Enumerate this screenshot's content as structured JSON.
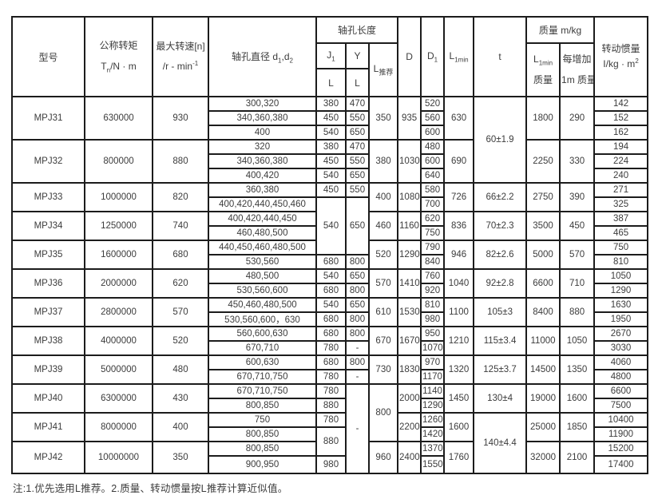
{
  "page": {
    "footnote": "注:1.优先选用L推荐。2.质量、转动惯量按L推荐计算近似值。"
  },
  "table": {
    "header": {
      "model": "型号",
      "torque_l1": "公称转矩",
      "torque_base": "T",
      "torque_sub": "n",
      "torque_rest": "/N · m",
      "speed_l1": "最大转速[n]",
      "speed_base": "/r - min",
      "speed_sup": "-1",
      "bore_base": "轴孔直径 d",
      "bore_sub1": "1",
      "bore_mid": ",d",
      "bore_sub2": "2",
      "hole_length": "轴孔长度",
      "j1_base": "J",
      "j1_sub": "1",
      "y": "Y",
      "l": "L",
      "lrec_base": "L",
      "lrec_sub": "推荐",
      "d": "D",
      "d1_base": "D",
      "d1_sub": "1",
      "l1min_base": "L",
      "l1min_sub": "1min",
      "t": "t",
      "mass": "质量  m/kg",
      "mass_l1min_base": "L",
      "mass_l1min_sub": "1min",
      "mass_l1min_l2": "质量",
      "mass_per_l1": "每增加",
      "mass_per_l2": "1m 质量",
      "inertia_l1": "转动惯量",
      "inertia_base": "I/kg · m",
      "inertia_sup": "2"
    },
    "col_names": [
      "model",
      "torque",
      "speed",
      "bore-diameter",
      "j1-l",
      "y-l",
      "l-recommended",
      "d",
      "d1",
      "l1min",
      "t",
      "l1min-mass",
      "per-meter-mass",
      "inertia"
    ],
    "rows": [
      [
        [
          "MPJ31",
          3
        ],
        [
          "630000",
          3
        ],
        [
          "930",
          3
        ],
        "300,320",
        "380",
        "470",
        [
          "350",
          3
        ],
        [
          "935",
          3
        ],
        "520",
        [
          "630",
          3
        ],
        [
          "60±1.9",
          6
        ],
        [
          "1800",
          3
        ],
        [
          "290",
          3
        ],
        "142"
      ],
      [
        null,
        null,
        null,
        "340,360,380",
        "450",
        "550",
        null,
        null,
        "560",
        null,
        null,
        null,
        null,
        "152"
      ],
      [
        null,
        null,
        null,
        "400",
        "540",
        "650",
        null,
        null,
        "600",
        null,
        null,
        null,
        null,
        "162"
      ],
      [
        [
          "MPJ32",
          3
        ],
        [
          "800000",
          3
        ],
        [
          "880",
          3
        ],
        "320",
        "380",
        "470",
        [
          "380",
          3
        ],
        [
          "1030",
          3
        ],
        "480",
        [
          "690",
          3
        ],
        null,
        [
          "2250",
          3
        ],
        [
          "330",
          3
        ],
        "194"
      ],
      [
        null,
        null,
        null,
        "340,360,380",
        "450",
        "550",
        null,
        null,
        "600",
        null,
        null,
        null,
        null,
        "224"
      ],
      [
        null,
        null,
        null,
        "400,420",
        "540",
        "650",
        null,
        null,
        "640",
        null,
        null,
        null,
        null,
        "240"
      ],
      [
        [
          "MPJ33",
          2
        ],
        [
          "1000000",
          2
        ],
        [
          "820",
          2
        ],
        "360,380",
        "450",
        "550",
        [
          "400",
          2
        ],
        [
          "1080",
          2
        ],
        "580",
        [
          "726",
          2
        ],
        [
          "66±2.2",
          2
        ],
        [
          "2750",
          2
        ],
        [
          "390",
          2
        ],
        "271"
      ],
      [
        null,
        null,
        null,
        "400,420,440,450,460",
        [
          "540",
          4
        ],
        [
          "650",
          4
        ],
        null,
        null,
        "700",
        null,
        null,
        null,
        null,
        "325"
      ],
      [
        [
          "MPJ34",
          2
        ],
        [
          "1250000",
          2
        ],
        [
          "740",
          2
        ],
        "400,420,440,450",
        null,
        null,
        [
          "460",
          2
        ],
        [
          "1160",
          2
        ],
        "620",
        [
          "836",
          2
        ],
        [
          "70±2.3",
          2
        ],
        [
          "3500",
          2
        ],
        [
          "450",
          2
        ],
        "387"
      ],
      [
        null,
        null,
        null,
        "460,480,500",
        null,
        null,
        null,
        null,
        "750",
        null,
        null,
        null,
        null,
        "465"
      ],
      [
        [
          "MPJ35",
          2
        ],
        [
          "1600000",
          2
        ],
        [
          "680",
          2
        ],
        "440,450,460,480,500",
        null,
        null,
        [
          "520",
          2
        ],
        [
          "1290",
          2
        ],
        "790",
        [
          "946",
          2
        ],
        [
          "82±2.6",
          2
        ],
        [
          "5000",
          2
        ],
        [
          "570",
          2
        ],
        "750"
      ],
      [
        null,
        null,
        null,
        "530,560",
        "680",
        "800",
        null,
        null,
        "840",
        null,
        null,
        null,
        null,
        "810"
      ],
      [
        [
          "MPJ36",
          2
        ],
        [
          "2000000",
          2
        ],
        [
          "620",
          2
        ],
        "480,500",
        "540",
        "650",
        [
          "570",
          2
        ],
        [
          "1410",
          2
        ],
        "760",
        [
          "1040",
          2
        ],
        [
          "92±2.8",
          2
        ],
        [
          "6600",
          2
        ],
        [
          "710",
          2
        ],
        "1050"
      ],
      [
        null,
        null,
        null,
        "530,560,600",
        "680",
        "800",
        null,
        null,
        "920",
        null,
        null,
        null,
        null,
        "1290"
      ],
      [
        [
          "MPJ37",
          2
        ],
        [
          "2800000",
          2
        ],
        [
          "570",
          2
        ],
        "450,460,480,500",
        "540",
        "650",
        [
          "610",
          2
        ],
        [
          "1530",
          2
        ],
        "810",
        [
          "1100",
          2
        ],
        [
          "105±3",
          2
        ],
        [
          "8400",
          2
        ],
        [
          "880",
          2
        ],
        "1630"
      ],
      [
        null,
        null,
        null,
        "530,560,600，630",
        "680",
        "800",
        null,
        null,
        "980",
        null,
        null,
        null,
        null,
        "1950"
      ],
      [
        [
          "MPJ38",
          2
        ],
        [
          "4000000",
          2
        ],
        [
          "520",
          2
        ],
        "560,600,630",
        "680",
        "800",
        [
          "670",
          2
        ],
        [
          "1670",
          2
        ],
        "950",
        [
          "1210",
          2
        ],
        [
          "115±3.4",
          2
        ],
        [
          "11000",
          2
        ],
        [
          "1050",
          2
        ],
        "2670"
      ],
      [
        null,
        null,
        null,
        "670,710",
        "780",
        "-",
        null,
        null,
        "1070",
        null,
        null,
        null,
        null,
        "3030"
      ],
      [
        [
          "MPJ39",
          2
        ],
        [
          "5000000",
          2
        ],
        [
          "480",
          2
        ],
        "600,630",
        "680",
        "800",
        [
          "730",
          2
        ],
        [
          "1830",
          2
        ],
        "970",
        [
          "1320",
          2
        ],
        [
          "125±3.7",
          2
        ],
        [
          "14500",
          2
        ],
        [
          "1350",
          2
        ],
        "4060"
      ],
      [
        null,
        null,
        null,
        "670,710,750",
        "780",
        "-",
        null,
        null,
        "1170",
        null,
        null,
        null,
        null,
        "4800"
      ],
      [
        [
          "MPJ40",
          2
        ],
        [
          "6300000",
          2
        ],
        [
          "430",
          2
        ],
        "670,710,750",
        "780",
        [
          "-",
          6
        ],
        [
          "800",
          4
        ],
        [
          "2000",
          2
        ],
        "1140",
        [
          "1450",
          2
        ],
        [
          "130±4",
          2
        ],
        [
          "19000",
          2
        ],
        [
          "1600",
          2
        ],
        "6600"
      ],
      [
        null,
        null,
        null,
        "800,850",
        "880",
        null,
        null,
        null,
        "1290",
        null,
        null,
        null,
        null,
        "7500"
      ],
      [
        [
          "MPJ41",
          2
        ],
        [
          "8000000",
          2
        ],
        [
          "400",
          2
        ],
        "750",
        "780",
        null,
        null,
        [
          "2200",
          2
        ],
        "1260",
        [
          "1600",
          2
        ],
        [
          "140±4.4",
          4
        ],
        [
          "25000",
          2
        ],
        [
          "1850",
          2
        ],
        "10400"
      ],
      [
        null,
        null,
        null,
        "800,850",
        [
          "880",
          2
        ],
        null,
        null,
        null,
        "1420",
        null,
        null,
        null,
        null,
        "11900"
      ],
      [
        [
          "MPJ42",
          2
        ],
        [
          "10000000",
          2
        ],
        [
          "350",
          2
        ],
        "800,850",
        null,
        null,
        [
          "960",
          2
        ],
        [
          "2400",
          2
        ],
        "1370",
        [
          "1760",
          2
        ],
        null,
        [
          "32000",
          2
        ],
        [
          "2100",
          2
        ],
        "15200"
      ],
      [
        null,
        null,
        null,
        "900,950",
        "980",
        null,
        null,
        null,
        "1550",
        null,
        null,
        null,
        null,
        "17400"
      ]
    ]
  }
}
